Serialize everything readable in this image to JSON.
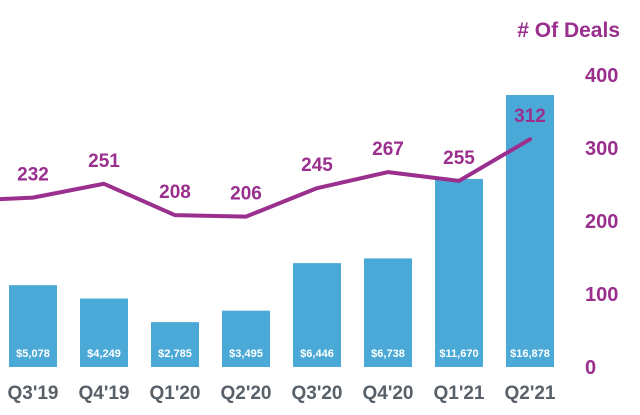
{
  "chart_data": {
    "type": "bar",
    "categories": [
      "Q3'19",
      "Q4'19",
      "Q1'20",
      "Q2'20",
      "Q3'20",
      "Q4'20",
      "Q1'21",
      "Q2'21"
    ],
    "series": [
      {
        "type": "bar",
        "values": [
          5078,
          4249,
          2785,
          3495,
          6446,
          6738,
          11670,
          16878
        ],
        "value_labels": [
          "$5,078",
          "$4,249",
          "$2,785",
          "$3,495",
          "$6,446",
          "$6,738",
          "$11,670",
          "$16,878"
        ],
        "color": "#4aa9d6"
      },
      {
        "name": "# Of Deals",
        "type": "line",
        "values": [
          232,
          251,
          208,
          206,
          245,
          267,
          255,
          312
        ],
        "color": "#9a2f8e",
        "axis": "right"
      }
    ],
    "bar_ylim": [
      0,
      18000
    ],
    "ylim": [
      0,
      400
    ],
    "yticks": [
      0,
      100,
      200,
      300,
      400
    ],
    "ylabel": "# Of Deals",
    "line_start_value": 230,
    "grid": false
  }
}
